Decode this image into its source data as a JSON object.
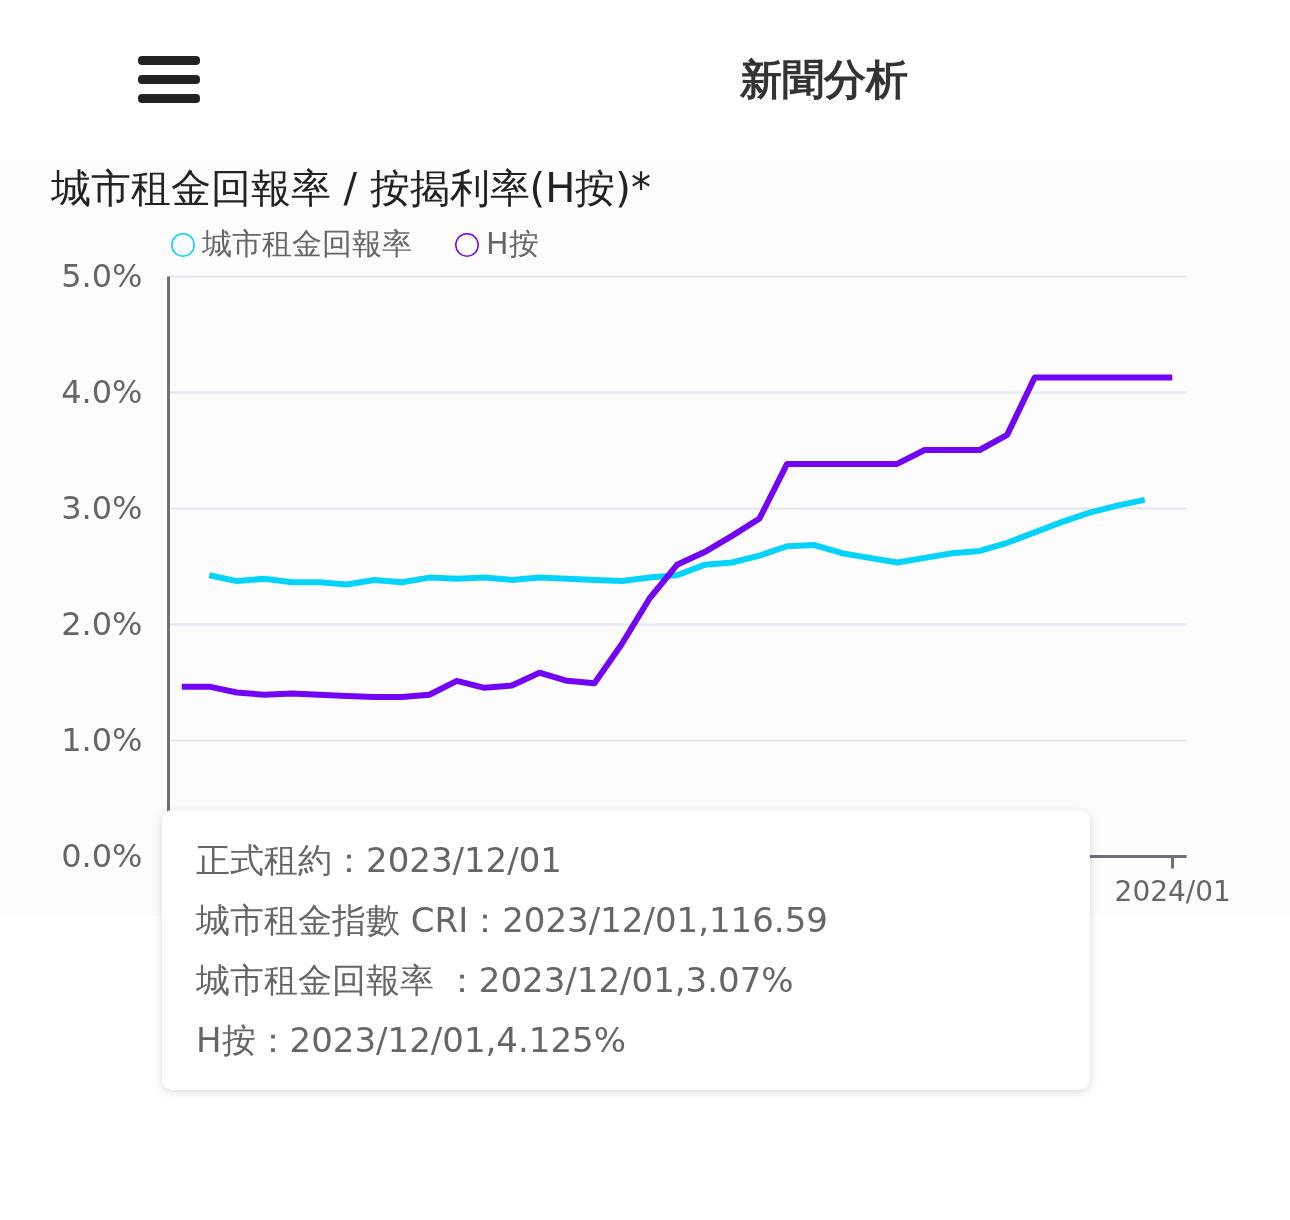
{
  "chart_data": {
    "type": "line",
    "title": "城市租金回報率 / 按揭利率(H按)*",
    "categories": [
      null,
      null,
      null,
      null,
      null,
      null,
      null,
      null,
      null,
      null,
      null,
      null,
      null,
      null,
      null,
      null,
      null,
      null,
      null,
      null,
      null,
      null,
      null,
      null,
      null,
      null,
      null,
      null,
      null,
      null,
      null,
      null,
      null,
      null,
      null,
      null,
      "2024/01"
    ],
    "series": [
      {
        "name": "城市租金回報率",
        "color": "#05d3fa",
        "values": [
          null,
          2.42,
          2.37,
          2.39,
          2.36,
          2.36,
          2.34,
          2.38,
          2.36,
          2.4,
          2.39,
          2.4,
          2.38,
          2.4,
          2.39,
          2.38,
          2.37,
          2.4,
          2.42,
          2.51,
          2.53,
          2.59,
          2.67,
          2.68,
          2.61,
          2.57,
          2.53,
          2.57,
          2.61,
          2.63,
          2.7,
          2.79,
          2.88,
          2.96,
          3.02,
          3.07,
          null
        ]
      },
      {
        "name": "H按",
        "color": "#7305f5",
        "values": [
          1.46,
          1.46,
          1.41,
          1.39,
          1.4,
          1.39,
          1.38,
          1.37,
          1.37,
          1.39,
          1.51,
          1.45,
          1.47,
          1.58,
          1.51,
          1.49,
          1.83,
          2.22,
          2.51,
          2.62,
          2.76,
          2.91,
          3.38,
          3.38,
          3.38,
          3.38,
          3.38,
          3.5,
          3.5,
          3.5,
          3.63,
          4.125,
          4.125,
          4.125,
          4.125,
          4.125,
          4.125
        ]
      }
    ],
    "ylim": [
      0,
      5
    ],
    "yticks": [
      {
        "value": 0,
        "label": "0.0%"
      },
      {
        "value": 1,
        "label": "1.0%"
      },
      {
        "value": 2,
        "label": "2.0%"
      },
      {
        "value": 3,
        "label": "3.0%"
      },
      {
        "value": 4,
        "label": "4.0%"
      },
      {
        "value": 5,
        "label": "5.0%"
      }
    ],
    "grid": "y",
    "legend": "top",
    "line_style": "solid",
    "marker": "none",
    "annotations": [
      "新聞分析",
      "正式租約：2023/12/01",
      "城市租金指數 CRI：2023/12/01,116.59",
      "城市租金回報率 ：2023/12/01,3.07%",
      "H按：2023/12/01,4.125%"
    ]
  }
}
